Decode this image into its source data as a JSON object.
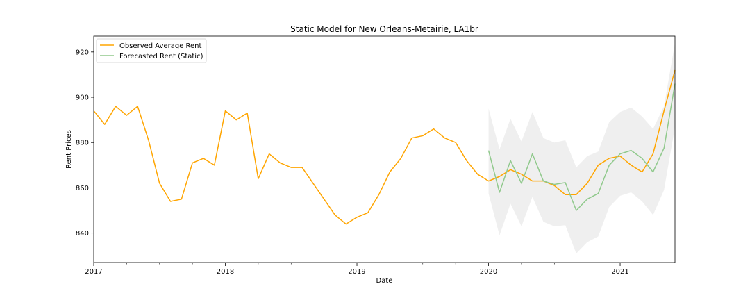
{
  "chart_data": {
    "type": "line",
    "title": "Static Model for New Orleans-Metairie, LA1br",
    "xlabel": "Date",
    "ylabel": "Rent Prices",
    "x_ticks": [
      "2017",
      "2018",
      "2019",
      "2020",
      "2021"
    ],
    "y_ticks": [
      840,
      860,
      880,
      900,
      920
    ],
    "xlim": [
      "2017-01",
      "2021-06"
    ],
    "ylim": [
      827,
      927
    ],
    "grid": false,
    "legend_position": "top-left",
    "colors": {
      "observed": "#ffa500",
      "forecast": "#90c98c",
      "band": "#e8e8e8"
    },
    "series": [
      {
        "name": "Observed Average Rent",
        "style": "line",
        "x": [
          "2017-01",
          "2017-02",
          "2017-03",
          "2017-04",
          "2017-05",
          "2017-06",
          "2017-07",
          "2017-08",
          "2017-09",
          "2017-10",
          "2017-11",
          "2017-12",
          "2018-01",
          "2018-02",
          "2018-03",
          "2018-04",
          "2018-05",
          "2018-06",
          "2018-07",
          "2018-08",
          "2018-09",
          "2018-10",
          "2018-11",
          "2018-12",
          "2019-01",
          "2019-02",
          "2019-03",
          "2019-04",
          "2019-05",
          "2019-06",
          "2019-07",
          "2019-08",
          "2019-09",
          "2019-10",
          "2019-11",
          "2019-12",
          "2020-01",
          "2020-02",
          "2020-03",
          "2020-04",
          "2020-05",
          "2020-06",
          "2020-07",
          "2020-08",
          "2020-09",
          "2020-10",
          "2020-11",
          "2020-12",
          "2021-01",
          "2021-02",
          "2021-03",
          "2021-04",
          "2021-05",
          "2021-06"
        ],
        "values": [
          894,
          888,
          896,
          892,
          896,
          881,
          862,
          854,
          855,
          871,
          873,
          870,
          894,
          890,
          893,
          864,
          875,
          871,
          869,
          869,
          862,
          855,
          848,
          844,
          847,
          849,
          857,
          867,
          873,
          882,
          883,
          886,
          882,
          880,
          872,
          866,
          863,
          865,
          868,
          866,
          863,
          863,
          861,
          857,
          857,
          862,
          870,
          873,
          874,
          870,
          867,
          875,
          894,
          912
        ]
      },
      {
        "name": "Forecasted Rent (Static)",
        "style": "line",
        "x": [
          "2020-01",
          "2020-02",
          "2020-03",
          "2020-04",
          "2020-05",
          "2020-06",
          "2020-07",
          "2020-08",
          "2020-09",
          "2020-10",
          "2020-11",
          "2020-12",
          "2021-01",
          "2021-02",
          "2021-03",
          "2021-04",
          "2021-05",
          "2021-06"
        ],
        "values": [
          876.5,
          858,
          872,
          862,
          875,
          863,
          861.5,
          862.3,
          850,
          855,
          857.5,
          870,
          875,
          876.5,
          873,
          867,
          877.5,
          906
        ],
        "lower": [
          857.5,
          839,
          853,
          843,
          856,
          845,
          843,
          843.5,
          831,
          836,
          838.5,
          851.5,
          856.5,
          858,
          854,
          848,
          859,
          887
        ],
        "upper": [
          895,
          877,
          890.5,
          880.5,
          893.5,
          882,
          880,
          881,
          869,
          874,
          876,
          889,
          893.5,
          895.5,
          891.5,
          886,
          896,
          924
        ]
      }
    ]
  }
}
